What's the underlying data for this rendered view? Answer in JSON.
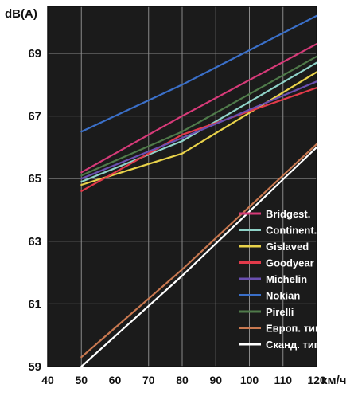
{
  "chart_data": {
    "type": "line",
    "title": "",
    "ylabel": "dB(A)",
    "xlabel": "км/ч",
    "xlim": [
      40,
      120
    ],
    "ylim": [
      59,
      70.5
    ],
    "xticks": [
      40,
      50,
      60,
      70,
      80,
      90,
      100,
      110,
      120
    ],
    "yticks": [
      59,
      61,
      63,
      65,
      67,
      69
    ],
    "grid": true,
    "legend_position": "bottom-right",
    "background_color": "#1b1b1b",
    "grid_color": "#8a8a8a",
    "series": [
      {
        "name": "Bridgest.",
        "color": "#d63a78",
        "x": [
          50,
          80,
          120
        ],
        "y": [
          65.2,
          67.0,
          69.3
        ]
      },
      {
        "name": "Continent.",
        "color": "#8fd3c8",
        "x": [
          50,
          80,
          120
        ],
        "y": [
          64.9,
          66.2,
          68.7
        ]
      },
      {
        "name": "Gislaved",
        "color": "#e8d24a",
        "x": [
          50,
          80,
          120
        ],
        "y": [
          64.8,
          65.8,
          68.4
        ]
      },
      {
        "name": "Goodyear",
        "color": "#e23a4a",
        "x": [
          50,
          80,
          120
        ],
        "y": [
          64.6,
          66.4,
          67.9
        ]
      },
      {
        "name": "Michelin",
        "color": "#6a4fb0",
        "x": [
          50,
          80,
          120
        ],
        "y": [
          65.0,
          66.3,
          68.1
        ]
      },
      {
        "name": "Nokian",
        "color": "#3a6fc8",
        "x": [
          50,
          80,
          120
        ],
        "y": [
          66.5,
          68.0,
          70.2
        ]
      },
      {
        "name": "Pirelli",
        "color": "#4f7a4a",
        "x": [
          50,
          80,
          120
        ],
        "y": [
          65.1,
          66.5,
          68.9
        ]
      },
      {
        "name": "Европ. тип",
        "color": "#c87850",
        "x": [
          50,
          80,
          120
        ],
        "y": [
          59.3,
          62.1,
          66.1
        ]
      },
      {
        "name": "Сканд. тип",
        "color": "#ffffff",
        "x": [
          50,
          80,
          120
        ],
        "y": [
          59.0,
          61.9,
          66.0
        ]
      }
    ]
  }
}
